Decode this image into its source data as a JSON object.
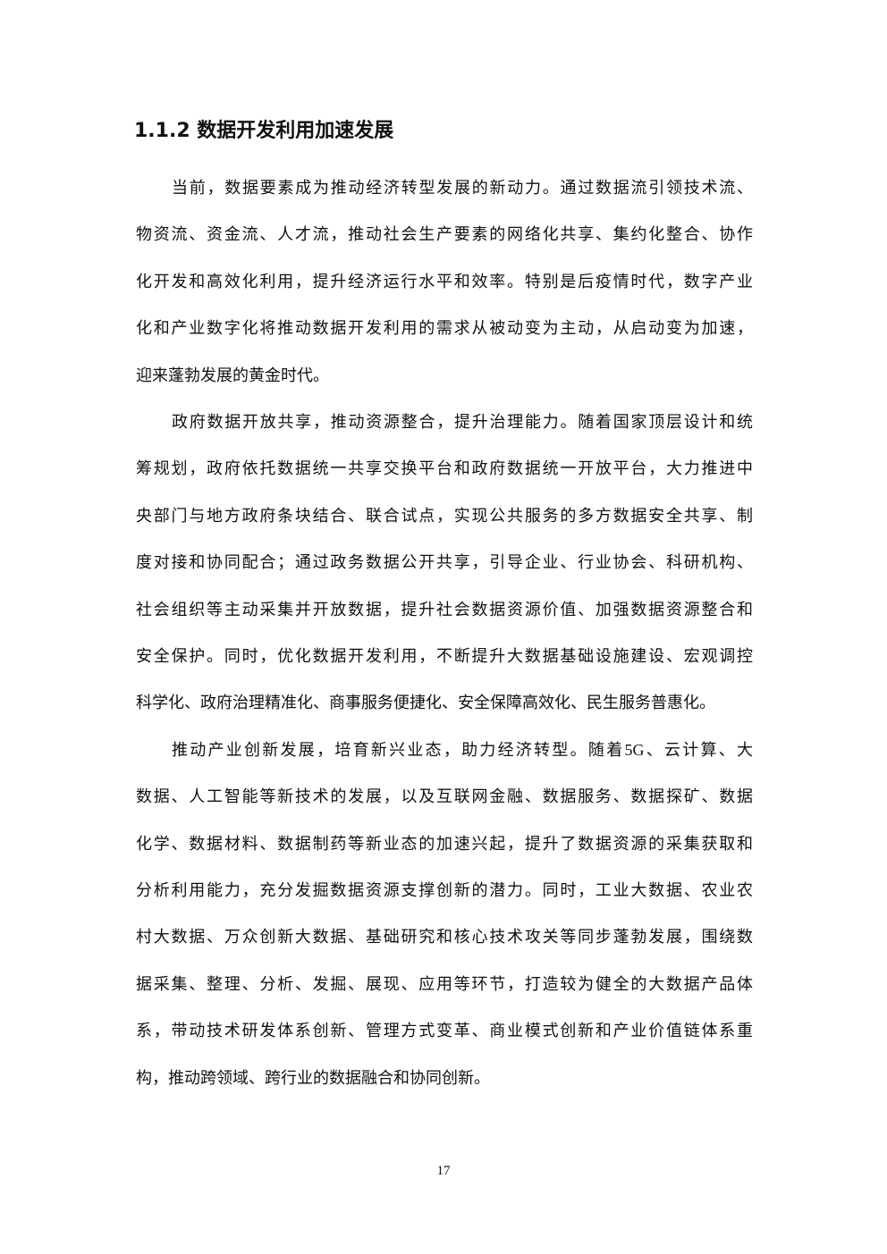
{
  "heading": "1.1.2 数据开发利用加速发展",
  "paragraphs": [
    [
      "当前，数据要素成为推动经济转型发展的新动力。通过数据流引领技术流、",
      "物资流、资金流、人才流，推动社会生产要素的网络化共享、集约化整合、协作",
      "化开发和高效化利用，提升经济运行水平和效率。特别是后疫情时代，数字产业",
      "化和产业数字化将推动数据开发利用的需求从被动变为主动，从启动变为加速，",
      "迎来蓬勃发展的黄金时代。"
    ],
    [
      "政府数据开放共享，推动资源整合，提升治理能力。随着国家顶层设计和统",
      "筹规划，政府依托数据统一共享交换平台和政府数据统一开放平台，大力推进中",
      "央部门与地方政府条块结合、联合试点，实现公共服务的多方数据安全共享、制",
      "度对接和协同配合；通过政务数据公开共享，引导企业、行业协会、科研机构、",
      "社会组织等主动采集并开放数据，提升社会数据资源价值、加强数据资源整合和",
      "安全保护。同时，优化数据开发利用，不断提升大数据基础设施建设、宏观调控",
      "科学化、政府治理精准化、商事服务便捷化、安全保障高效化、民生服务普惠化。"
    ],
    [
      "推动产业创新发展，培育新兴业态，助力经济转型。随着5G、云计算、大",
      "数据、人工智能等新技术的发展，以及互联网金融、数据服务、数据探矿、数据",
      "化学、数据材料、数据制药等新业态的加速兴起，提升了数据资源的采集获取和",
      "分析利用能力，充分发掘数据资源支撑创新的潜力。同时，工业大数据、农业农",
      "村大数据、万众创新大数据、基础研究和核心技术攻关等同步蓬勃发展，围绕数",
      "据采集、整理、分析、发掘、展现、应用等环节，打造较为健全的大数据产品体",
      "系，带动技术研发体系创新、管理方式变革、商业模式创新和产业价值链体系重",
      "构，推动跨领域、跨行业的数据融合和协同创新。"
    ]
  ],
  "page_number": "17"
}
